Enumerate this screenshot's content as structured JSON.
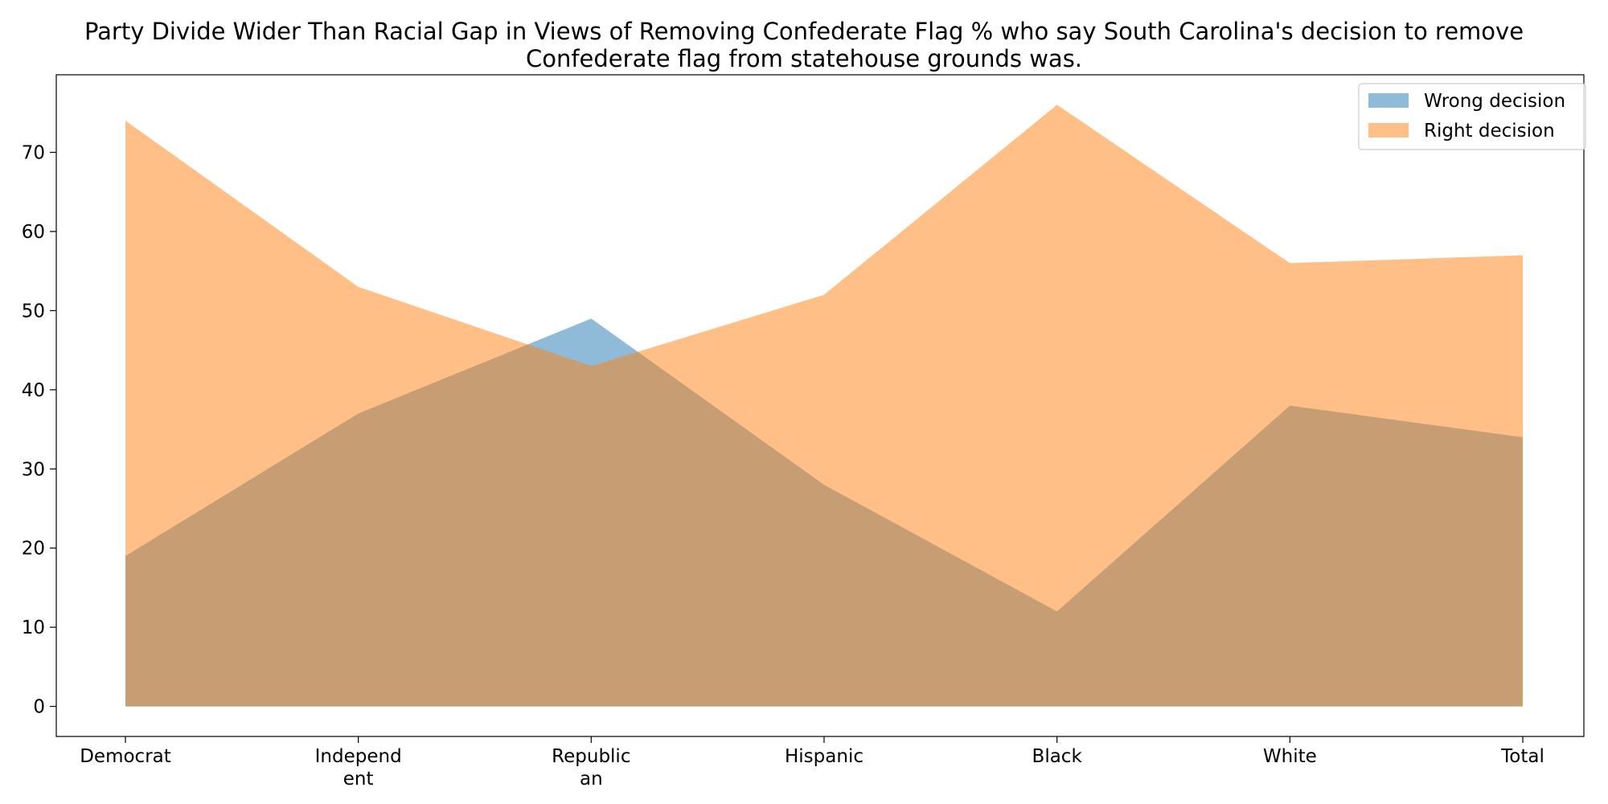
{
  "chart_data": {
    "type": "area",
    "title_lines": [
      "Party Divide Wider Than Racial Gap in Views of Removing Confederate Flag % who say South Carolina's decision to remove",
      "Confederate flag from statehouse grounds was."
    ],
    "xlabel": "",
    "ylabel": "",
    "categories": [
      "Democrat",
      "Independent",
      "Republican",
      "Hispanic",
      "Black",
      "White",
      "Total"
    ],
    "category_tick_labels": [
      [
        "Democrat"
      ],
      [
        "Independ",
        "ent"
      ],
      [
        "Republic",
        "an"
      ],
      [
        "Hispanic"
      ],
      [
        "Black"
      ],
      [
        "White"
      ],
      [
        "Total"
      ]
    ],
    "yticks": [
      0,
      10,
      20,
      30,
      40,
      50,
      60,
      70
    ],
    "ylim": [
      -3.8,
      79.8
    ],
    "grid": false,
    "legend_position": "top-right",
    "stacked": false,
    "series": [
      {
        "name": "Wrong decision",
        "values": [
          19,
          37,
          49,
          28,
          12,
          38,
          34
        ],
        "color": "#1f77b4",
        "opacity": 0.5
      },
      {
        "name": "Right decision",
        "values": [
          74,
          53,
          43,
          52,
          76,
          56,
          57
        ],
        "color": "#ff7f0e",
        "opacity": 0.5
      }
    ]
  }
}
